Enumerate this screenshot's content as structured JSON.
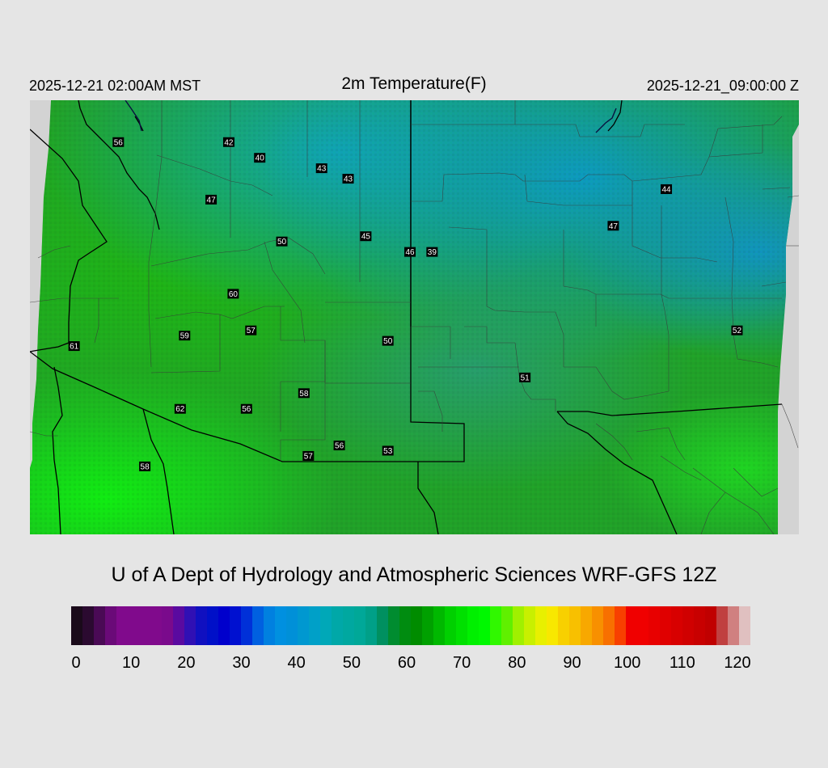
{
  "header": {
    "local_time": "2025-12-21 02:00AM MST",
    "title": "2m Temperature(F)",
    "valid_time": "2025-12-21_09:00:00 Z"
  },
  "map": {
    "background_color": "#d3d3d3",
    "stations": [
      {
        "value": "56",
        "lon": -113.9,
        "lat": 37.4
      },
      {
        "value": "42",
        "lon": -111.4,
        "lat": 37.4
      },
      {
        "value": "40",
        "lon": -110.7,
        "lat": 37.1
      },
      {
        "value": "43",
        "lon": -109.3,
        "lat": 36.9
      },
      {
        "value": "43",
        "lon": -108.7,
        "lat": 36.7
      },
      {
        "value": "47",
        "lon": -111.8,
        "lat": 36.3
      },
      {
        "value": "50",
        "lon": -110.2,
        "lat": 35.5
      },
      {
        "value": "45",
        "lon": -108.3,
        "lat": 35.6
      },
      {
        "value": "46",
        "lon": -107.3,
        "lat": 35.3
      },
      {
        "value": "39",
        "lon": -106.8,
        "lat": 35.3
      },
      {
        "value": "47",
        "lon": -102.7,
        "lat": 35.8
      },
      {
        "value": "44",
        "lon": -101.5,
        "lat": 36.5
      },
      {
        "value": "60",
        "lon": -111.3,
        "lat": 34.5
      },
      {
        "value": "59",
        "lon": -112.4,
        "lat": 33.7
      },
      {
        "value": "57",
        "lon": -110.9,
        "lat": 33.8
      },
      {
        "value": "50",
        "lon": -107.8,
        "lat": 33.6
      },
      {
        "value": "61",
        "lon": -114.9,
        "lat": 33.5
      },
      {
        "value": "51",
        "lon": -104.7,
        "lat": 32.9
      },
      {
        "value": "52",
        "lon": -99.9,
        "lat": 33.8
      },
      {
        "value": "58",
        "lon": -109.7,
        "lat": 32.6
      },
      {
        "value": "62",
        "lon": -112.5,
        "lat": 32.3
      },
      {
        "value": "56",
        "lon": -111.0,
        "lat": 32.3
      },
      {
        "value": "56",
        "lon": -108.9,
        "lat": 31.6
      },
      {
        "value": "57",
        "lon": -109.6,
        "lat": 31.4
      },
      {
        "value": "53",
        "lon": -107.8,
        "lat": 31.5
      },
      {
        "value": "58",
        "lon": -113.3,
        "lat": 31.2
      }
    ]
  },
  "credit": "U of A Dept of Hydrology and Atmospheric Sciences WRF-GFS 12Z",
  "colorbar": {
    "unit": "F",
    "min": 0,
    "max": 120,
    "ticks": [
      "0",
      "10",
      "20",
      "30",
      "40",
      "50",
      "60",
      "70",
      "80",
      "90",
      "100",
      "110",
      "120"
    ],
    "colors": [
      "#1a0a1a",
      "#2b0a30",
      "#4a0a55",
      "#6a0a78",
      "#800a8c",
      "#800a8c",
      "#800a8c",
      "#800a8c",
      "#7a0a8c",
      "#5a0aa0",
      "#3010b4",
      "#1010c0",
      "#0010c8",
      "#0000cc",
      "#0010d0",
      "#0030d8",
      "#0060e0",
      "#0080e0",
      "#0090e0",
      "#0090d8",
      "#0098d0",
      "#00a0c8",
      "#00a8b8",
      "#00a8a8",
      "#00a8a0",
      "#00a898",
      "#00a088",
      "#009060",
      "#008c30",
      "#008c10",
      "#008c00",
      "#00a000",
      "#00b800",
      "#00d000",
      "#00e000",
      "#00f000",
      "#00f800",
      "#30f800",
      "#60f000",
      "#a0f000",
      "#c8f000",
      "#e8f000",
      "#f8e800",
      "#f8d000",
      "#f8c000",
      "#f8a800",
      "#f89000",
      "#f87000",
      "#f84000",
      "#f00000",
      "#f00000",
      "#e80000",
      "#e00000",
      "#d80000",
      "#d00000",
      "#c80000",
      "#c00000",
      "#c04040",
      "#d08080",
      "#e0c0c0"
    ]
  }
}
